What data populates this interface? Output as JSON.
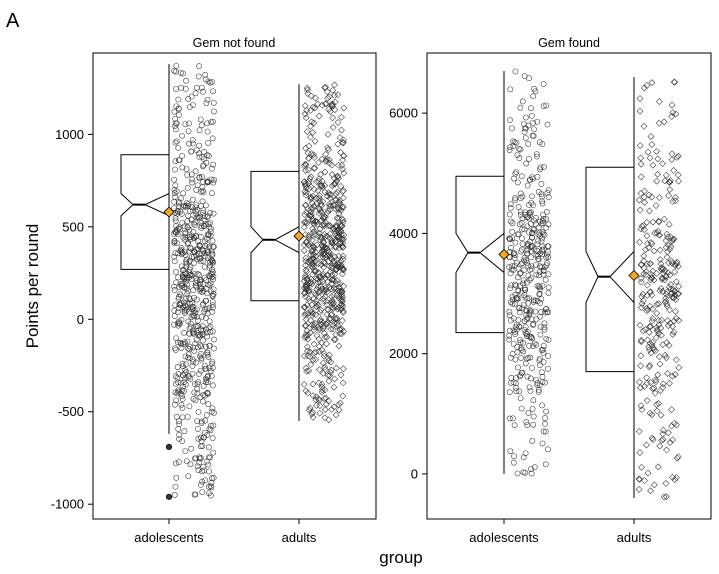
{
  "figure": {
    "panel_letter": "A",
    "ylabel": "Points per round",
    "xlabel": "group"
  },
  "colors": {
    "mean_marker": "#f5a623",
    "box_stroke": "#000000",
    "point_stroke": "#333333",
    "frame": "#000000"
  },
  "chart_data": [
    {
      "type": "box",
      "title": "Gem not found",
      "categories": [
        "adolescents",
        "adults"
      ],
      "ylim": [
        -1080,
        1440
      ],
      "yticks": [
        -1000,
        -500,
        0,
        500,
        1000
      ],
      "ytick_labels": [
        "-1000",
        "-500",
        "0",
        "500",
        "1000"
      ],
      "series": [
        {
          "category": "adolescents",
          "marker": "circle",
          "whisker_low": -620,
          "q1": 270,
          "median": 620,
          "q3": 890,
          "whisker_high": 1380,
          "notch_low": 560,
          "notch_high": 680,
          "mean": 580,
          "outliers": [
            -690,
            -960
          ],
          "points_range": [
            -960,
            1380
          ],
          "points_count": 650
        },
        {
          "category": "adults",
          "marker": "diamond",
          "whisker_low": -550,
          "q1": 100,
          "median": 430,
          "q3": 800,
          "whisker_high": 1270,
          "notch_low": 360,
          "notch_high": 500,
          "mean": 450,
          "outliers": [],
          "points_range": [
            -550,
            1270
          ],
          "points_count": 650
        }
      ]
    },
    {
      "type": "box",
      "title": "Gem found",
      "categories": [
        "adolescents",
        "adults"
      ],
      "ylim": [
        -750,
        7000
      ],
      "yticks": [
        0,
        2000,
        4000,
        6000
      ],
      "ytick_labels": [
        "0",
        "2000",
        "4000",
        "6000"
      ],
      "series": [
        {
          "category": "adolescents",
          "marker": "circle",
          "whisker_low": 0,
          "q1": 2350,
          "median": 3680,
          "q3": 4950,
          "whisker_high": 6700,
          "notch_low": 3350,
          "notch_high": 4000,
          "mean": 3650,
          "outliers": [],
          "points_range": [
            0,
            6700
          ],
          "points_count": 420
        },
        {
          "category": "adults",
          "marker": "diamond",
          "whisker_low": -400,
          "q1": 1700,
          "median": 3280,
          "q3": 5100,
          "whisker_high": 6600,
          "notch_low": 2850,
          "notch_high": 3700,
          "mean": 3300,
          "outliers": [],
          "points_range": [
            -400,
            6600
          ],
          "points_count": 300
        }
      ]
    }
  ]
}
